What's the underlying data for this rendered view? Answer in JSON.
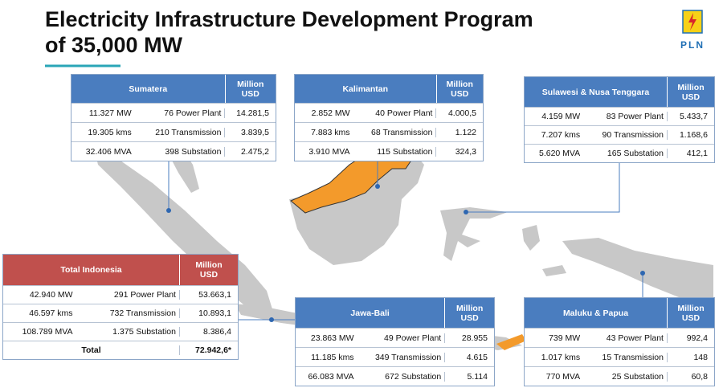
{
  "title": {
    "line1": "Electricity Infrastructure Development Program",
    "line2": "of 35,000 MW"
  },
  "logo": {
    "text": "PLN"
  },
  "tables": [
    {
      "name": "Sumatera",
      "unit": "Million USD",
      "rows": [
        [
          "11.327 MW",
          "76 Power Plant",
          "14.281,5"
        ],
        [
          "19.305 kms",
          "210 Transmission",
          "3.839,5"
        ],
        [
          "32.406 MVA",
          "398 Substation",
          "2.475,2"
        ]
      ]
    },
    {
      "name": "Kalimantan",
      "unit": "Million USD",
      "rows": [
        [
          "2.852 MW",
          "40 Power Plant",
          "4.000,5"
        ],
        [
          "7.883 kms",
          "68 Transmission",
          "1.122"
        ],
        [
          "3.910 MVA",
          "115 Substation",
          "324,3"
        ]
      ]
    },
    {
      "name": "Sulawesi & Nusa Tenggara",
      "unit": "Million USD",
      "rows": [
        [
          "4.159 MW",
          "83 Power Plant",
          "5.433,7"
        ],
        [
          "7.207 kms",
          "90 Transmission",
          "1.168,6"
        ],
        [
          "5.620 MVA",
          "165 Substation",
          "412,1"
        ]
      ]
    },
    {
      "name": "Total Indonesia",
      "unit": "Million USD",
      "rows": [
        [
          "42.940 MW",
          "291 Power Plant",
          "53.663,1"
        ],
        [
          "46.597 kms",
          "732 Transmission",
          "10.893,1"
        ],
        [
          "108.789 MVA",
          "1.375 Substation",
          "8.386,4"
        ]
      ],
      "total": [
        "Total",
        "72.942,6*"
      ]
    },
    {
      "name": "Jawa-Bali",
      "unit": "Million USD",
      "rows": [
        [
          "23.863 MW",
          "49 Power Plant",
          "28.955"
        ],
        [
          "11.185 kms",
          "349 Transmission",
          "4.615"
        ],
        [
          "66.083 MVA",
          "672 Substation",
          "5.114"
        ]
      ]
    },
    {
      "name": "Maluku & Papua",
      "unit": "Million USD",
      "rows": [
        [
          "739 MW",
          "43 Power Plant",
          "992,4"
        ],
        [
          "1.017 kms",
          "15 Transmission",
          "148"
        ],
        [
          "770 MVA",
          "25 Substation",
          "60,8"
        ]
      ]
    }
  ]
}
